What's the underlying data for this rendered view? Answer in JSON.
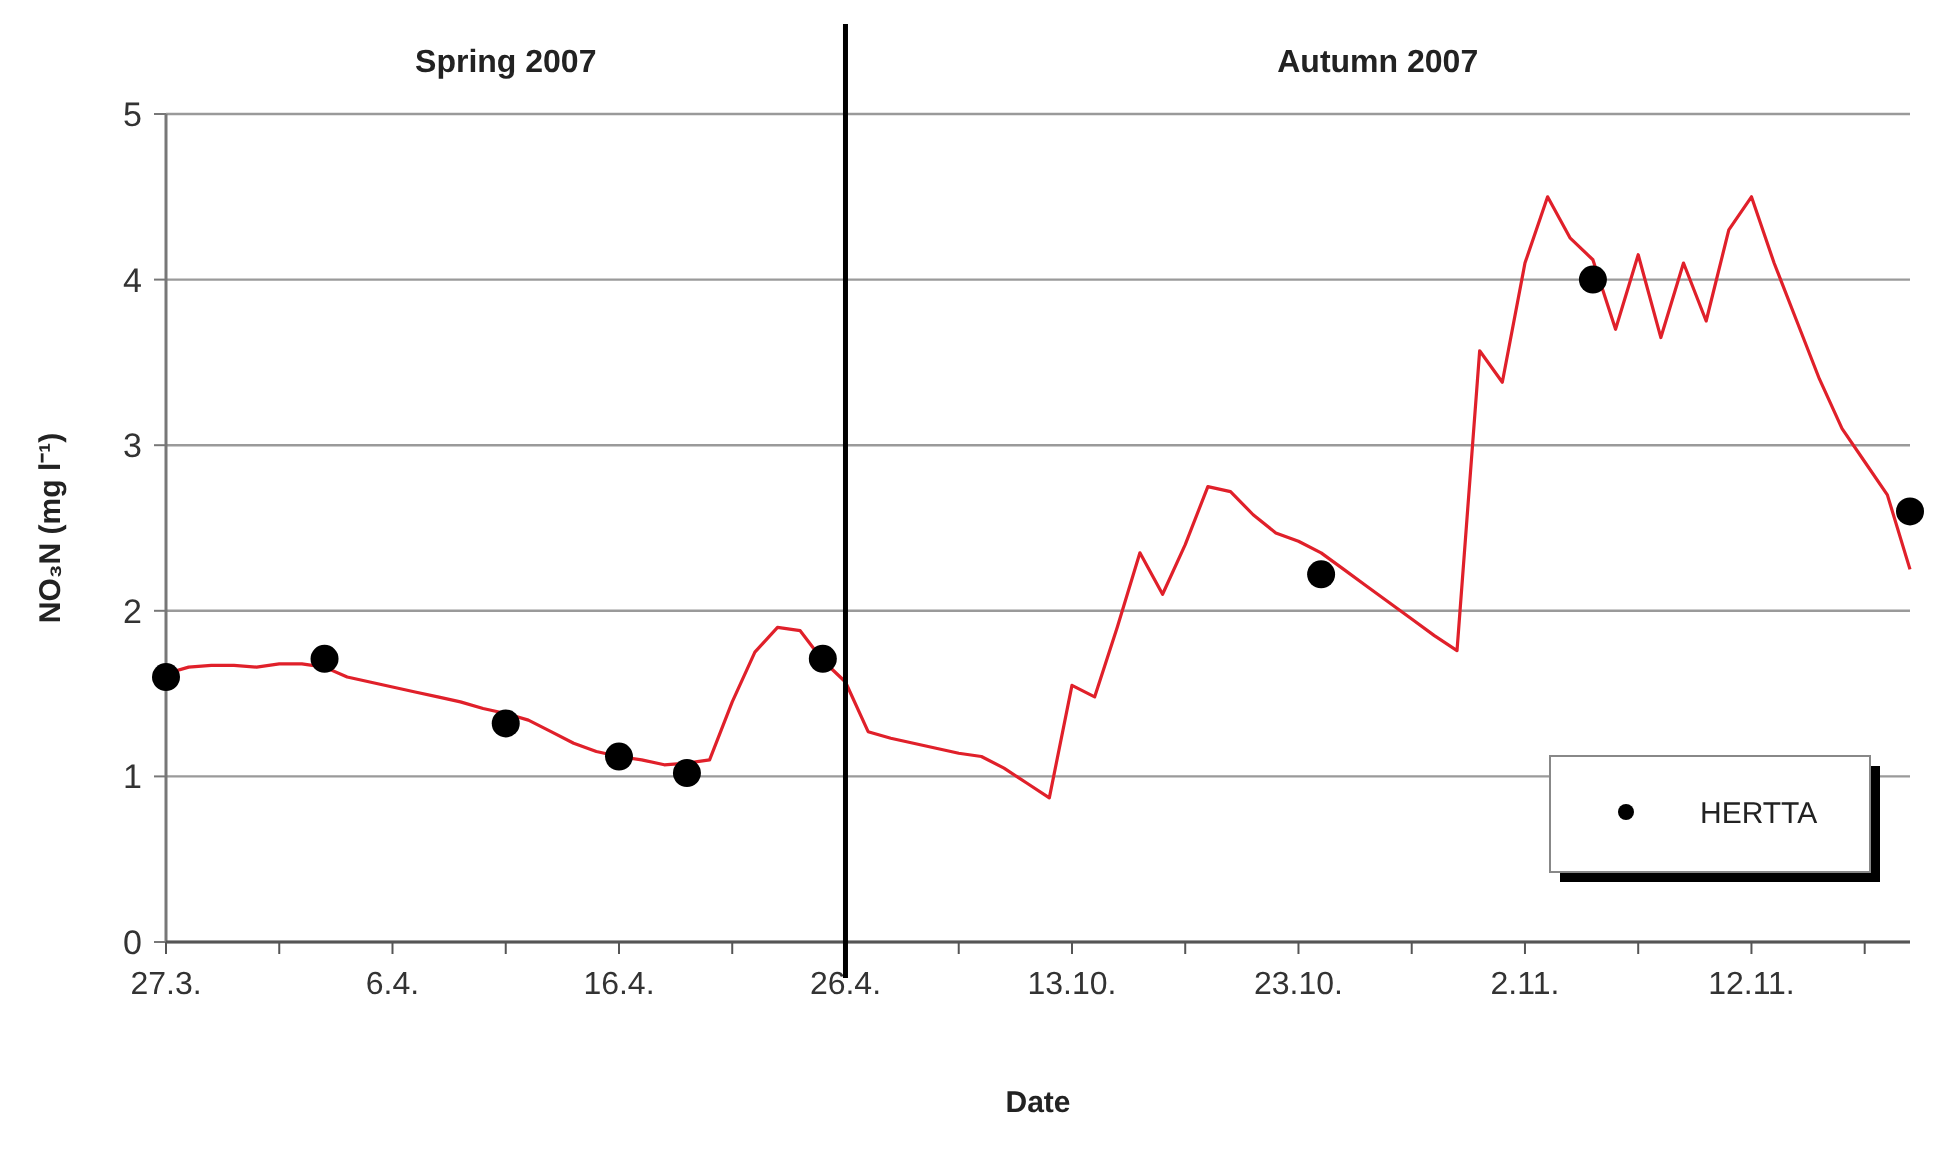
{
  "chart_data": {
    "type": "line",
    "xlabel": "Date",
    "ylabel": "NO₃N (mg l⁻¹)",
    "categories": [
      "27.3.",
      null,
      null,
      null,
      null,
      null,
      null,
      null,
      null,
      null,
      "6.4.",
      null,
      null,
      null,
      null,
      null,
      null,
      null,
      null,
      null,
      "16.4.",
      null,
      null,
      null,
      null,
      null,
      null,
      null,
      null,
      null,
      "26.4.",
      null,
      null,
      null,
      null,
      null,
      null,
      null,
      null,
      null,
      "13.10.",
      null,
      null,
      null,
      null,
      null,
      null,
      null,
      null,
      null,
      "23.10.",
      null,
      null,
      null,
      null,
      null,
      null,
      null,
      null,
      null,
      "2.11.",
      null,
      null,
      null,
      null,
      null,
      null,
      null,
      null,
      null,
      "12.11.",
      null,
      null,
      null,
      null,
      null,
      null,
      null
    ],
    "series": [
      {
        "color": "#e0202a",
        "values": [
          1.62,
          1.66,
          1.67,
          1.67,
          1.66,
          1.68,
          1.68,
          1.66,
          1.6,
          1.57,
          1.54,
          1.51,
          1.48,
          1.45,
          1.41,
          1.38,
          1.34,
          1.27,
          1.2,
          1.15,
          1.12,
          1.1,
          1.07,
          1.08,
          1.1,
          1.45,
          1.75,
          1.9,
          1.88,
          1.7,
          1.57,
          1.27,
          1.23,
          1.2,
          1.17,
          1.14,
          1.12,
          1.05,
          0.96,
          0.87,
          1.55,
          1.48,
          1.9,
          2.35,
          2.1,
          2.4,
          2.75,
          2.72,
          2.58,
          2.47,
          2.42,
          2.35,
          2.25,
          2.15,
          2.05,
          1.95,
          1.85,
          1.76,
          3.57,
          3.38,
          4.1,
          4.5,
          4.25,
          4.12,
          3.7,
          4.15,
          3.65,
          4.1,
          3.75,
          4.3,
          4.5,
          4.1,
          3.75,
          3.4,
          3.1,
          2.9,
          2.7,
          2.25
        ]
      },
      {
        "type": "scatter",
        "name": "HERTTA",
        "color": "#000000",
        "marker": "circle",
        "values": [
          1.6,
          null,
          null,
          null,
          null,
          null,
          null,
          1.71,
          null,
          null,
          null,
          null,
          null,
          null,
          null,
          1.32,
          null,
          null,
          null,
          null,
          1.12,
          null,
          null,
          1.02,
          null,
          null,
          null,
          null,
          null,
          1.71,
          null,
          null,
          null,
          null,
          null,
          null,
          null,
          null,
          null,
          null,
          null,
          null,
          null,
          null,
          null,
          null,
          null,
          null,
          null,
          null,
          null,
          2.22,
          null,
          null,
          null,
          null,
          null,
          null,
          null,
          null,
          null,
          null,
          null,
          4.0,
          null,
          null,
          null,
          null,
          null,
          null,
          null,
          null,
          null,
          null,
          null,
          null,
          null,
          2.6
        ]
      }
    ],
    "ylim": [
      0,
      5
    ],
    "yticks": [
      0,
      1,
      2,
      3,
      4,
      5
    ],
    "grid": "y",
    "legend": "bottom right",
    "ref_lines": [
      {
        "axis": "x",
        "value": "26.4.",
        "color": "#000000"
      }
    ],
    "annotations": [
      "Spring 2007",
      "Autumn 2007"
    ]
  }
}
